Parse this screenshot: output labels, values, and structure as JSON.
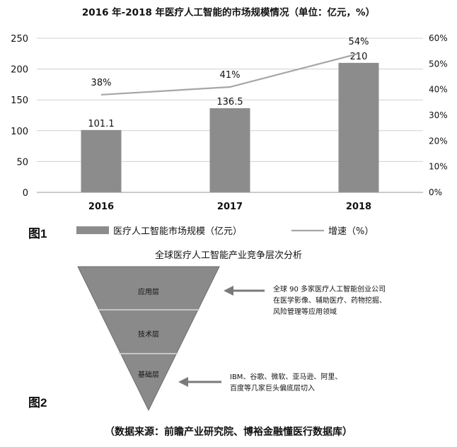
{
  "chart_data": {
    "type": "bar",
    "title": "2016 年-2018 年医疗人工智能的市场规模情况（单位：亿元，%）",
    "categories": [
      "2016",
      "2017",
      "2018"
    ],
    "series": [
      {
        "name": "医疗人工智能市场规模（亿元）",
        "type": "bar",
        "axis": "left",
        "values": [
          101.1,
          136.5,
          210
        ],
        "labels": [
          "101.1",
          "136.5",
          "210"
        ],
        "color": "#8c8c8c"
      },
      {
        "name": "增速（%）",
        "type": "line",
        "axis": "right",
        "values": [
          38,
          41,
          54
        ],
        "labels": [
          "38%",
          "41%",
          "54%"
        ],
        "color": "#a6a6a6"
      }
    ],
    "y_left": {
      "ticks": [
        "0",
        "50",
        "100",
        "150",
        "200",
        "250"
      ],
      "ylim": [
        0,
        250
      ]
    },
    "y_right": {
      "ticks": [
        "0%",
        "10%",
        "20%",
        "30%",
        "40%",
        "50%",
        "60%"
      ],
      "ylim": [
        0,
        60
      ]
    },
    "grid": true,
    "legend_position": "bottom"
  },
  "figure1": {
    "label": "图1"
  },
  "figure2": {
    "label": "图2",
    "title": "全球医疗人工智能产业竞争层次分析",
    "layers": [
      "应用层",
      "技术层",
      "基础层"
    ],
    "annotations": [
      "全球 90 多家医疗人工智能创业公司在医学影像、辅助医疗、药物挖掘、风险管理等应用领域",
      "IBM、谷歌、微软、亚马逊、阿里、百度等几家巨头偏底层切入"
    ]
  },
  "source": "（数据来源：前瞻产业研究院、博裕金融懂医行数据库）"
}
